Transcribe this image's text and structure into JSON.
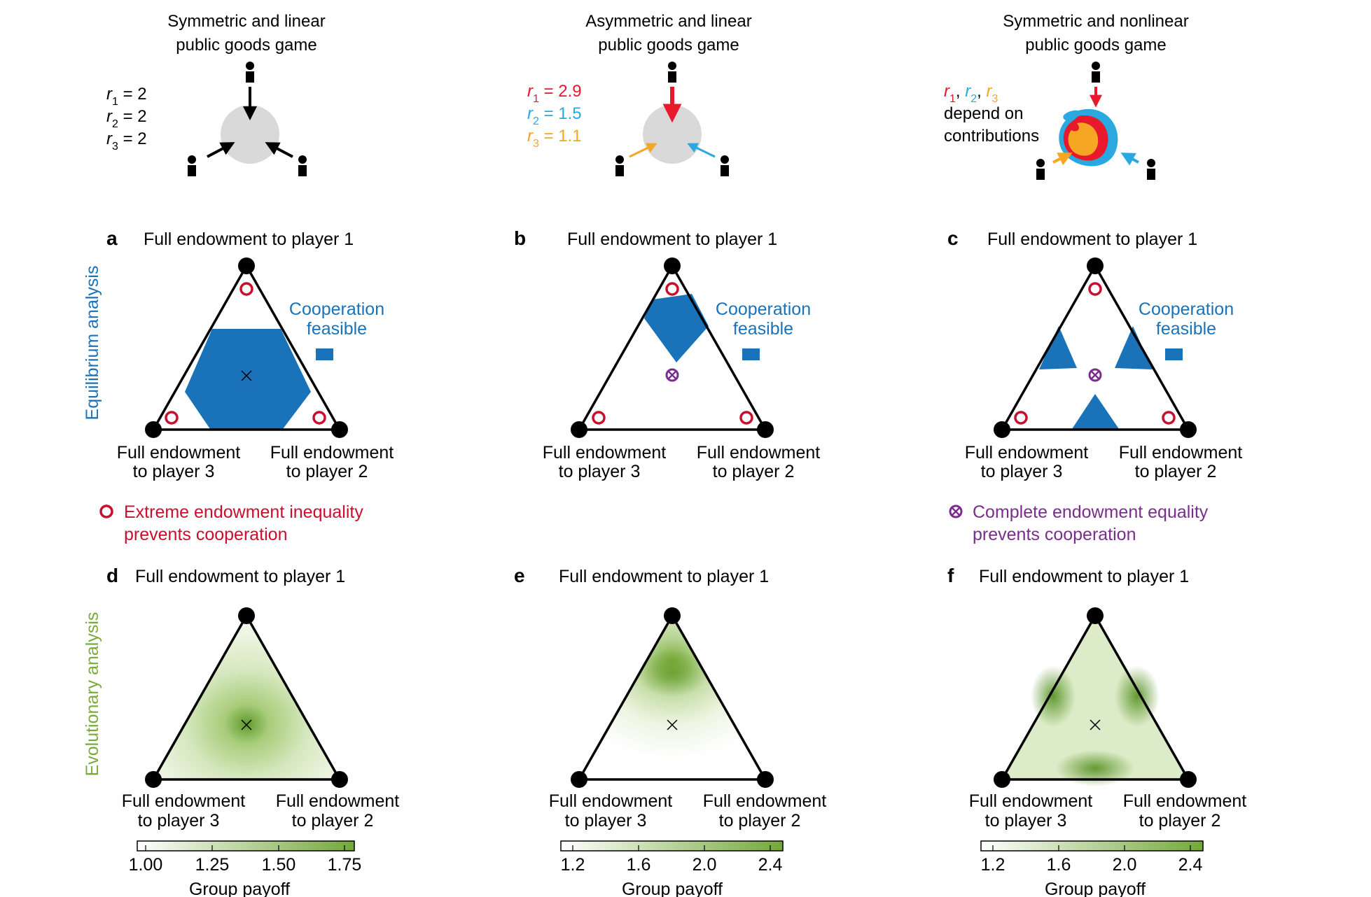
{
  "colors": {
    "blue": "#1a73b8",
    "red": "#c8102e",
    "purple": "#7b2d8e",
    "green": "#7aab3a",
    "gray": "#d9d9d9",
    "black": "#000000",
    "r1": "#e8192c",
    "r2": "#2aa8e0",
    "r3": "#f5a623"
  },
  "top": [
    {
      "title_l1": "Symmetric and linear",
      "title_l2": "public goods game",
      "r_lines": [
        {
          "sym": "r",
          "sub": "1",
          "val": " = 2"
        },
        {
          "sym": "r",
          "sub": "2",
          "val": " = 2"
        },
        {
          "sym": "r",
          "sub": "3",
          "val": " = 2"
        }
      ]
    },
    {
      "title_l1": "Asymmetric and linear",
      "title_l2": "public goods game",
      "r_lines": [
        {
          "sym": "r",
          "sub": "1",
          "val": " = 2.9"
        },
        {
          "sym": "r",
          "sub": "2",
          "val": " = 1.5"
        },
        {
          "sym": "r",
          "sub": "3",
          "val": " = 1.1"
        }
      ]
    },
    {
      "title_l1": "Symmetric and nonlinear",
      "title_l2": "public goods game",
      "r_sym": [
        "r",
        "r",
        "r"
      ],
      "r_sub": [
        "1",
        "2",
        "3"
      ],
      "sep": ", ",
      "note_l1": "depend on",
      "note_l2": "contributions"
    }
  ],
  "side_labels": {
    "equilibrium": "Equilibrium analysis",
    "evolutionary": "Evolutionary analysis"
  },
  "panel_letters": [
    "a",
    "b",
    "c",
    "d",
    "e",
    "f"
  ],
  "vertex_top": "Full endowment to player 1",
  "vertex_left": [
    "Full endowment",
    "to player 3"
  ],
  "vertex_right": [
    "Full endowment",
    "to player 2"
  ],
  "coop_label": [
    "Cooperation",
    "feasible"
  ],
  "legend_red": [
    "Extreme endowment inequality",
    "prevents cooperation"
  ],
  "legend_purple": [
    "Complete endowment equality",
    "prevents cooperation"
  ],
  "colorbars": [
    {
      "ticks": [
        "1.00",
        "1.25",
        "1.50",
        "1.75"
      ],
      "label": "Group payoff"
    },
    {
      "ticks": [
        "1.2",
        "1.6",
        "2.0",
        "2.4"
      ],
      "label": "Group payoff"
    },
    {
      "ticks": [
        "1.2",
        "1.6",
        "2.0",
        "2.4"
      ],
      "label": "Group payoff"
    }
  ]
}
